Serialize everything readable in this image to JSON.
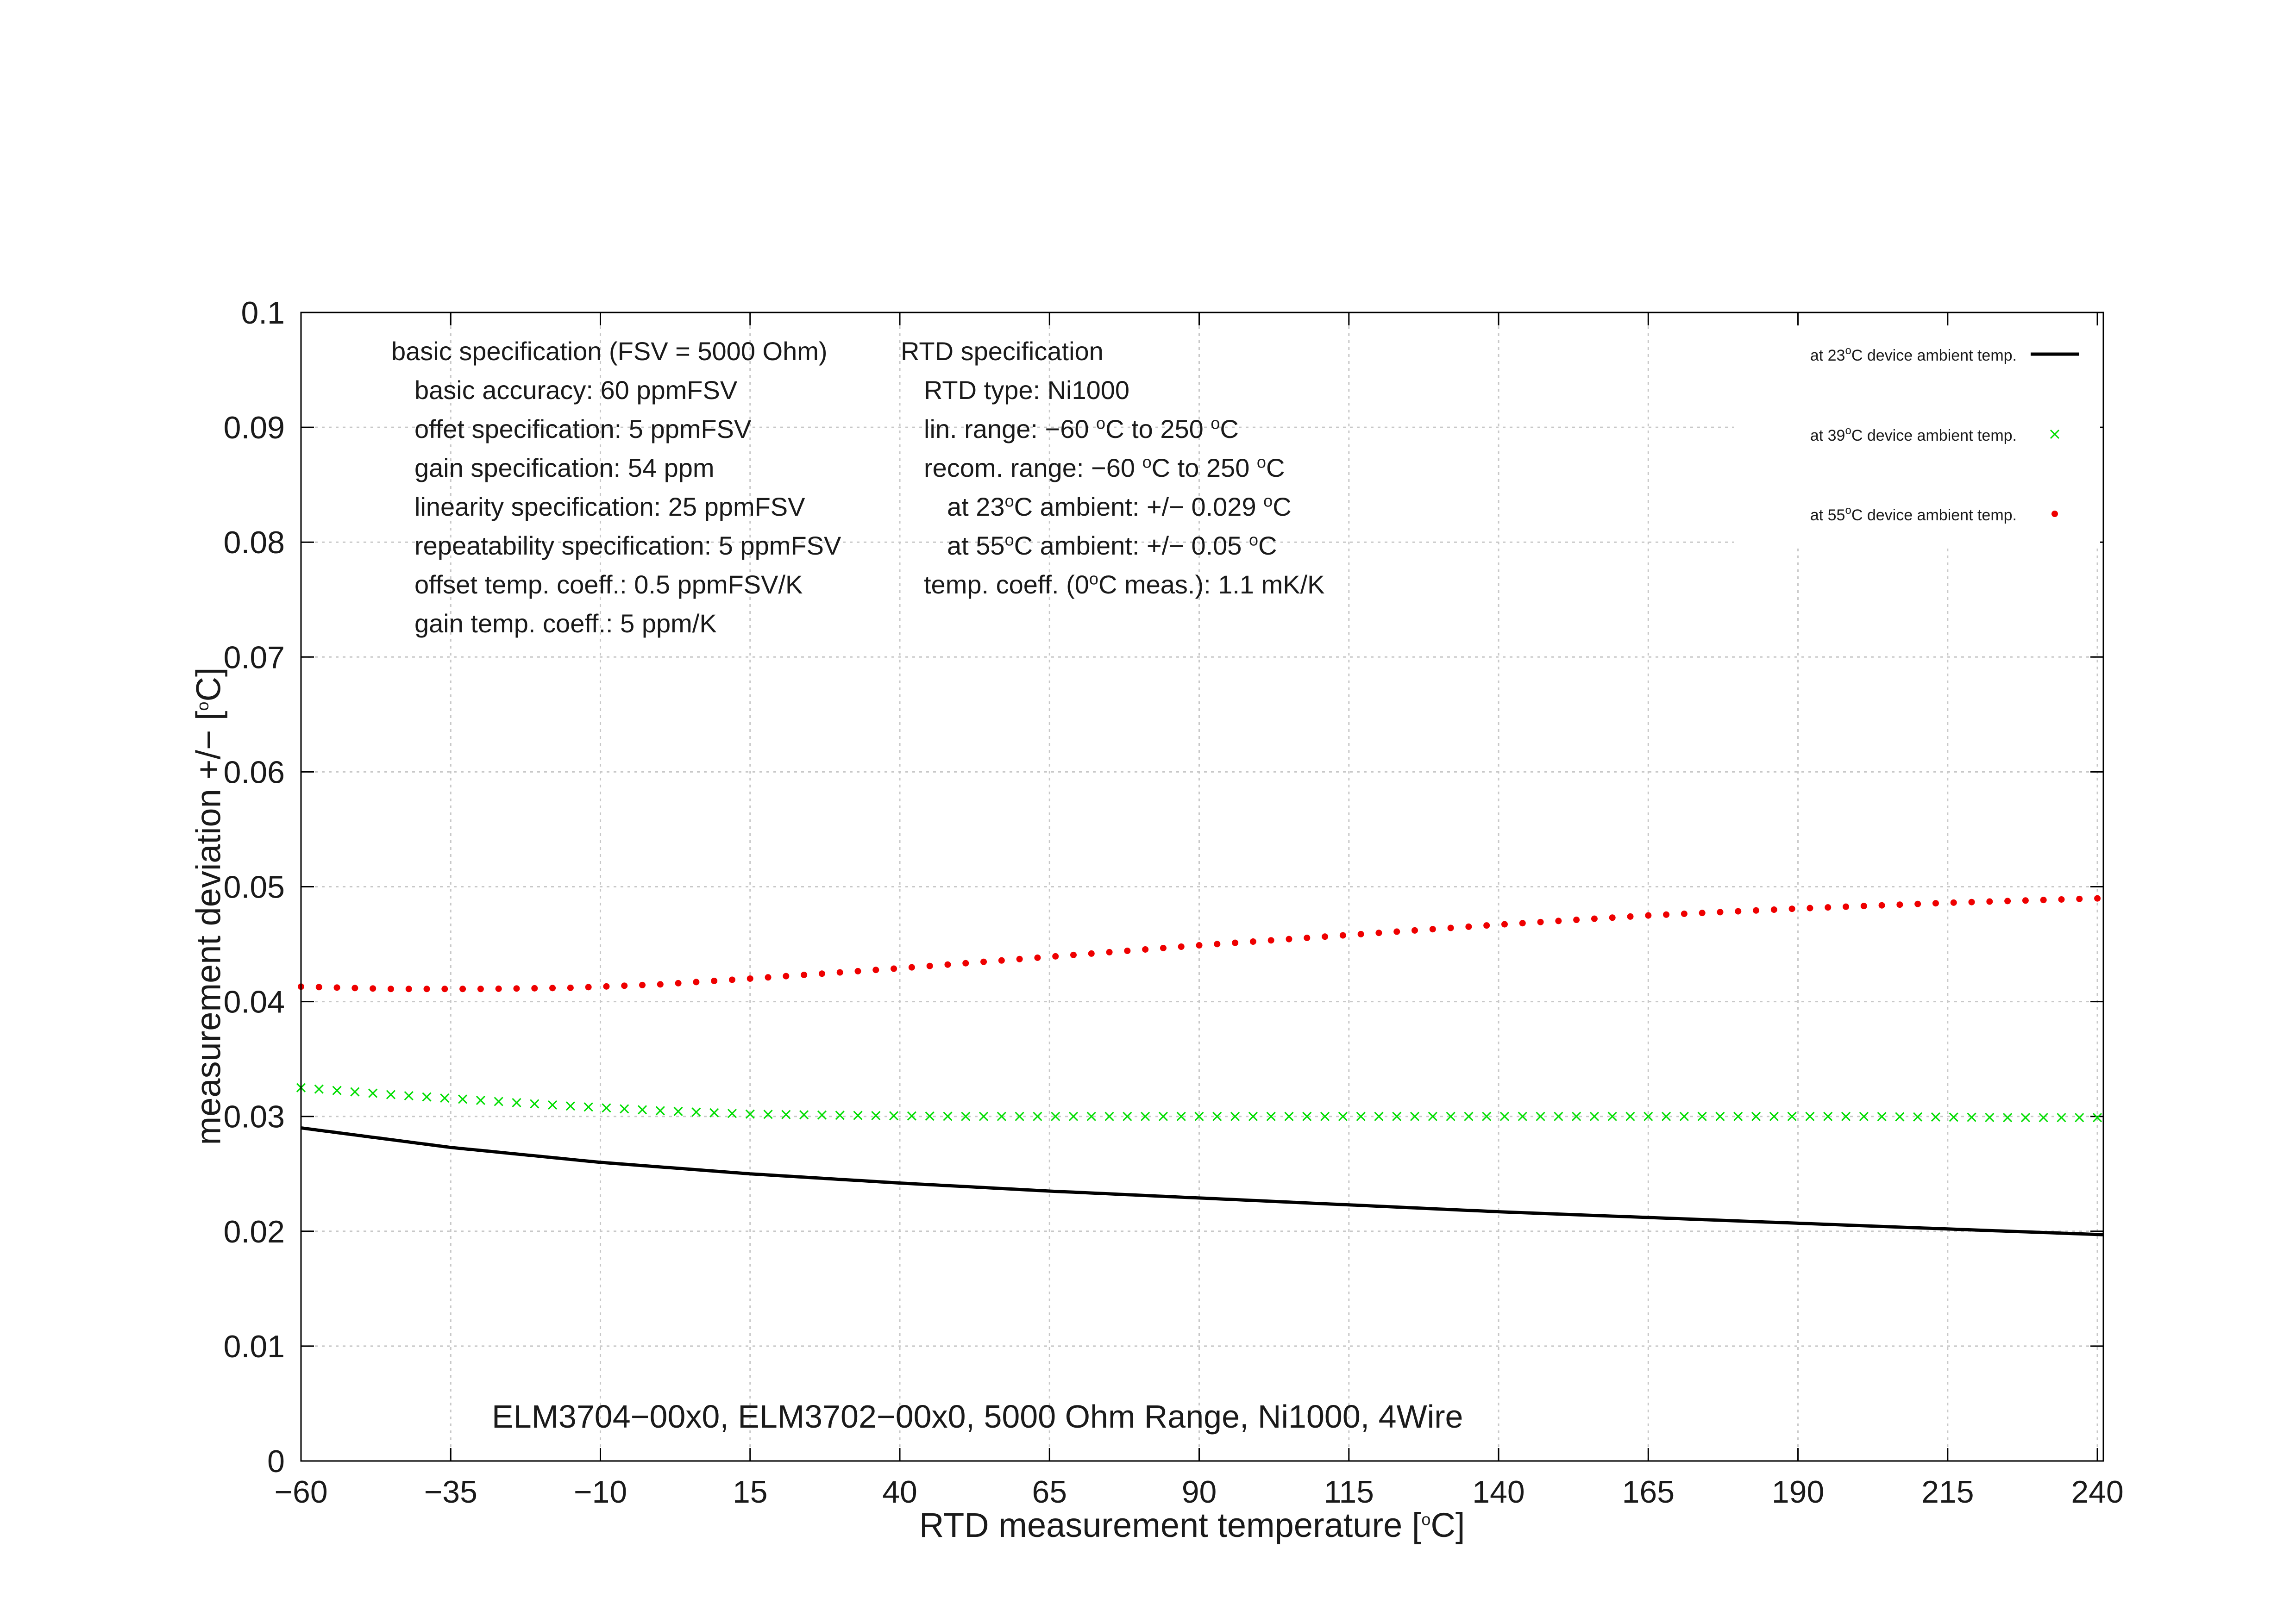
{
  "chart_data": {
    "type": "line",
    "title": "ELM3704−00x0, ELM3702−00x0, 5000 Ohm Range, Ni1000, 4Wire",
    "xlabel": "RTD measurement temperature [°C]",
    "ylabel": "measurement deviation +/− [°C]",
    "xlim": [
      -60,
      241
    ],
    "ylim": [
      0,
      0.1
    ],
    "xticks": [
      -60,
      -35,
      -10,
      15,
      40,
      65,
      90,
      115,
      140,
      165,
      190,
      215,
      240
    ],
    "xtick_labels": [
      "−60",
      "−35",
      "−10",
      "15",
      "40",
      "65",
      "90",
      "115",
      "140",
      "165",
      "190",
      "215",
      "240"
    ],
    "yticks": [
      0,
      0.01,
      0.02,
      0.03,
      0.04,
      0.05,
      0.06,
      0.07,
      0.08,
      0.09,
      0.1
    ],
    "ytick_labels": [
      "0",
      "0.01",
      "0.02",
      "0.03",
      "0.04",
      "0.05",
      "0.06",
      "0.07",
      "0.08",
      "0.09",
      "0.1"
    ],
    "grid": true,
    "legend_position": "top-right",
    "series": [
      {
        "name": "at 23°C device ambient temp.",
        "style": "line",
        "color": "#000000",
        "x": [
          -60,
          -35,
          -10,
          15,
          40,
          65,
          90,
          115,
          140,
          165,
          190,
          215,
          241
        ],
        "y": [
          0.029,
          0.0273,
          0.026,
          0.025,
          0.0242,
          0.0235,
          0.0229,
          0.0223,
          0.0217,
          0.0212,
          0.0207,
          0.0202,
          0.0197
        ]
      },
      {
        "name": "at 39°C device ambient temp.",
        "style": "cross",
        "color": "#00dd00",
        "x": [
          -60,
          -45,
          -30,
          -15,
          0,
          15,
          30,
          50,
          75,
          100,
          125,
          150,
          175,
          200,
          225,
          241
        ],
        "y": [
          0.0325,
          0.0319,
          0.0314,
          0.0309,
          0.0305,
          0.0302,
          0.0301,
          0.03,
          0.03,
          0.03,
          0.03,
          0.03,
          0.03,
          0.03,
          0.0299,
          0.0299
        ]
      },
      {
        "name": "at 55°C device ambient temp.",
        "style": "dot",
        "color": "#ee0000",
        "x": [
          -60,
          -45,
          -30,
          -15,
          0,
          15,
          40,
          65,
          90,
          115,
          140,
          165,
          190,
          215,
          241
        ],
        "y": [
          0.0413,
          0.0411,
          0.0411,
          0.0412,
          0.0415,
          0.042,
          0.0429,
          0.0439,
          0.0449,
          0.0458,
          0.0467,
          0.0475,
          0.0481,
          0.0486,
          0.049
        ]
      }
    ]
  },
  "legend": {
    "items": [
      {
        "prefix": "at 23",
        "sup": "o",
        "suffix": "C device ambient temp."
      },
      {
        "prefix": "at 39",
        "sup": "o",
        "suffix": "C device ambient temp."
      },
      {
        "prefix": "at 55",
        "sup": "o",
        "suffix": "C device ambient temp."
      }
    ]
  },
  "axis_text": {
    "x_prefix": "RTD measurement temperature [",
    "x_sup": "o",
    "x_suffix": "C]",
    "y_prefix": "measurement deviation +/− [",
    "y_sup": "o",
    "y_suffix": "C]"
  },
  "basic_spec": {
    "heading": "basic specification (FSV = 5000 Ohm)",
    "lines": [
      "basic accuracy: 60 ppmFSV",
      "offet specification: 5 ppmFSV",
      "gain specification: 54 ppm",
      "linearity specification: 25 ppmFSV",
      "repeatability specification: 5 ppmFSV",
      "offset temp. coeff.: 0.5 ppmFSV/K",
      "gain temp. coeff.: 5 ppm/K"
    ]
  },
  "rtd_spec": {
    "heading": "RTD specification",
    "type_line": "RTD type: Ni1000",
    "lin_prefix": "lin. range: −60 ",
    "lin_mid": "C to 250 ",
    "lin_suffix": "C",
    "recom_prefix": "recom. range: −60 ",
    "recom_mid": "C to 250 ",
    "recom_suffix": "C",
    "amb23_prefix": "at 23",
    "amb23_mid": "C ambient: +/− 0.029 ",
    "amb23_suffix": "C",
    "amb55_prefix": "at 55",
    "amb55_mid": "C ambient: +/− 0.05 ",
    "amb55_suffix": "C",
    "tc_prefix": "temp. coeff. (0",
    "tc_suffix": "C meas.): 1.1 mK/K",
    "sup": "o"
  }
}
